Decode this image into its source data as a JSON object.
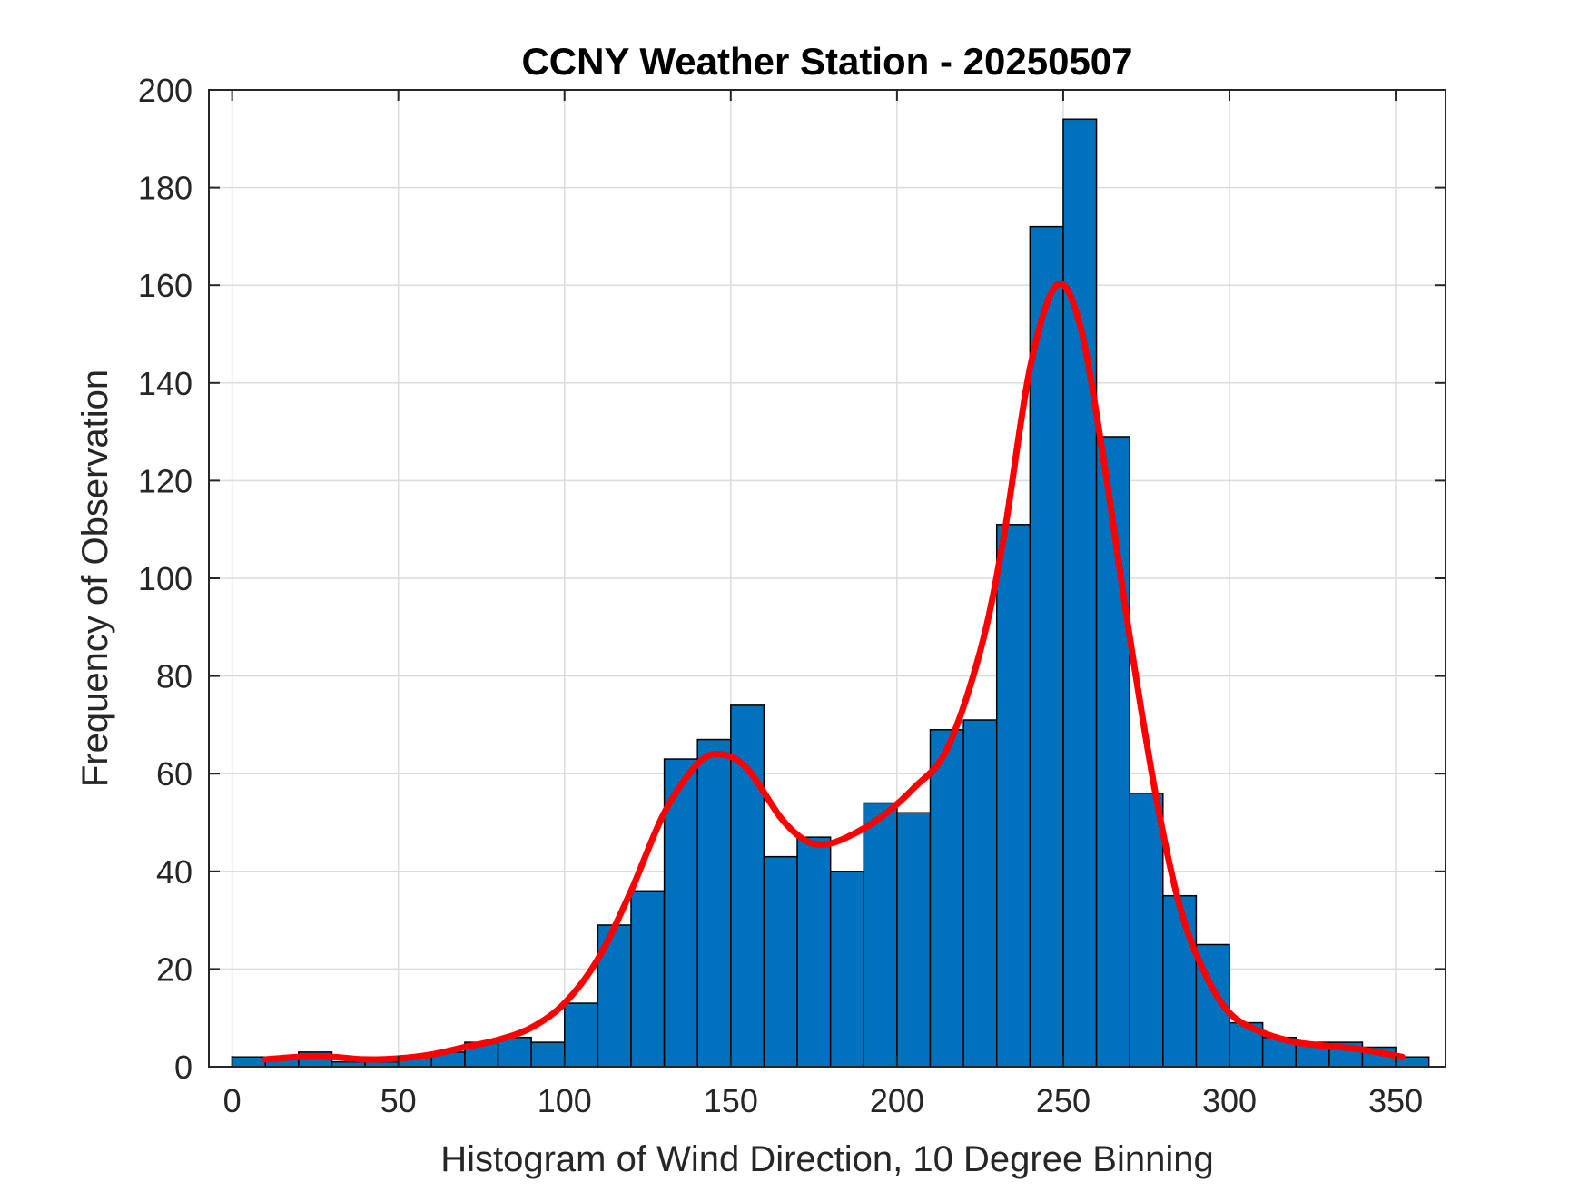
{
  "chart_data": {
    "type": "bar",
    "title": "CCNY Weather Station - 20250507",
    "xlabel": "Histogram of Wind Direction, 10 Degree Binning",
    "ylabel": "Frequency of Observation",
    "xlim": [
      -7,
      365
    ],
    "ylim": [
      0,
      200
    ],
    "xticks": [
      0,
      50,
      100,
      150,
      200,
      250,
      300,
      350
    ],
    "yticks": [
      0,
      20,
      40,
      60,
      80,
      100,
      120,
      140,
      160,
      180,
      200
    ],
    "grid": true,
    "bin_width": 10,
    "bins": [
      {
        "start": 0,
        "value": 2
      },
      {
        "start": 10,
        "value": 2
      },
      {
        "start": 20,
        "value": 3
      },
      {
        "start": 30,
        "value": 1
      },
      {
        "start": 40,
        "value": 1
      },
      {
        "start": 50,
        "value": 2
      },
      {
        "start": 60,
        "value": 3
      },
      {
        "start": 70,
        "value": 5
      },
      {
        "start": 80,
        "value": 6
      },
      {
        "start": 90,
        "value": 5
      },
      {
        "start": 100,
        "value": 13
      },
      {
        "start": 110,
        "value": 29
      },
      {
        "start": 120,
        "value": 36
      },
      {
        "start": 130,
        "value": 63
      },
      {
        "start": 140,
        "value": 67
      },
      {
        "start": 150,
        "value": 74
      },
      {
        "start": 160,
        "value": 43
      },
      {
        "start": 170,
        "value": 47
      },
      {
        "start": 180,
        "value": 40
      },
      {
        "start": 190,
        "value": 54
      },
      {
        "start": 200,
        "value": 52
      },
      {
        "start": 210,
        "value": 69
      },
      {
        "start": 220,
        "value": 71
      },
      {
        "start": 230,
        "value": 111
      },
      {
        "start": 240,
        "value": 172
      },
      {
        "start": 250,
        "value": 194
      },
      {
        "start": 260,
        "value": 129
      },
      {
        "start": 270,
        "value": 56
      },
      {
        "start": 280,
        "value": 35
      },
      {
        "start": 290,
        "value": 25
      },
      {
        "start": 300,
        "value": 9
      },
      {
        "start": 310,
        "value": 6
      },
      {
        "start": 320,
        "value": 5
      },
      {
        "start": 330,
        "value": 5
      },
      {
        "start": 340,
        "value": 4
      },
      {
        "start": 350,
        "value": 2
      }
    ],
    "fit_curve": {
      "color": "#ff0000",
      "points": [
        [
          10,
          1.5
        ],
        [
          20,
          2
        ],
        [
          30,
          2
        ],
        [
          40,
          1.5
        ],
        [
          50,
          1.7
        ],
        [
          60,
          2.5
        ],
        [
          70,
          4
        ],
        [
          80,
          5.5
        ],
        [
          90,
          8
        ],
        [
          100,
          13
        ],
        [
          110,
          22
        ],
        [
          120,
          36
        ],
        [
          130,
          52
        ],
        [
          140,
          62
        ],
        [
          147,
          64
        ],
        [
          155,
          61
        ],
        [
          165,
          51
        ],
        [
          172,
          46.5
        ],
        [
          178,
          45.5
        ],
        [
          185,
          47
        ],
        [
          195,
          51
        ],
        [
          205,
          57
        ],
        [
          215,
          65
        ],
        [
          225,
          85
        ],
        [
          232,
          108
        ],
        [
          240,
          143
        ],
        [
          248,
          160
        ],
        [
          255,
          152
        ],
        [
          262,
          125
        ],
        [
          270,
          88
        ],
        [
          278,
          55
        ],
        [
          285,
          33
        ],
        [
          292,
          20
        ],
        [
          300,
          11
        ],
        [
          310,
          7
        ],
        [
          320,
          5
        ],
        [
          330,
          4.2
        ],
        [
          340,
          3.5
        ],
        [
          352,
          2
        ]
      ]
    },
    "bar_color": "#0072bd",
    "bar_edge_color": "#000000"
  }
}
